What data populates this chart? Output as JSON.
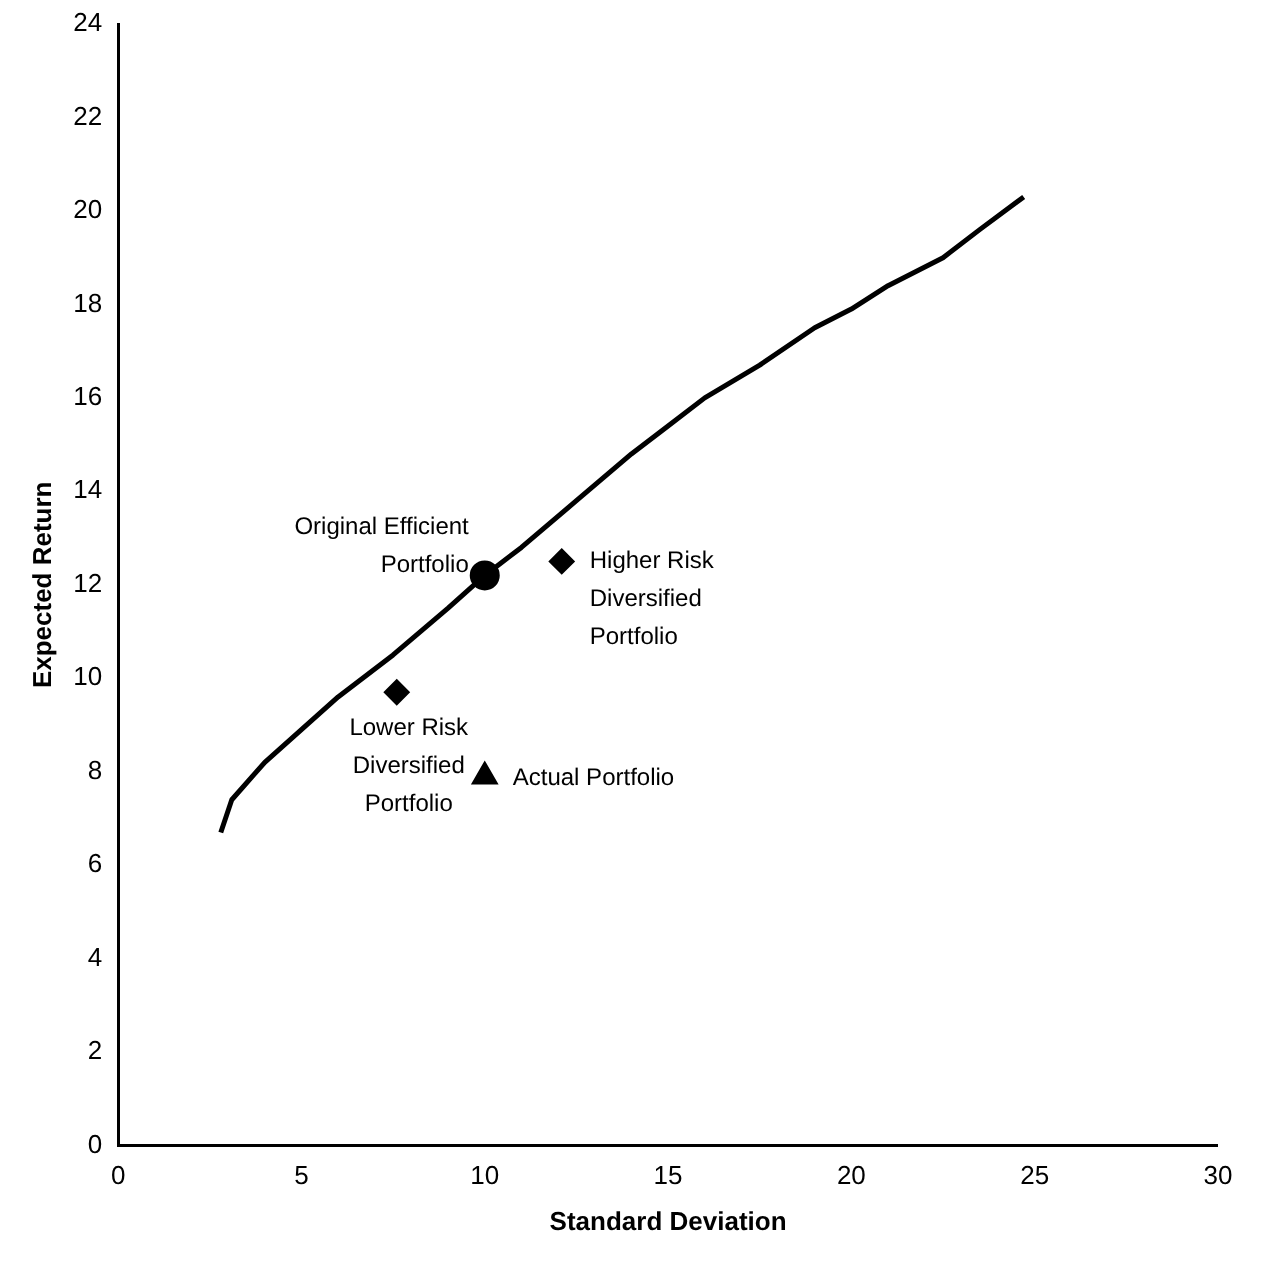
{
  "chart_data": {
    "type": "scatter",
    "xlabel": "Standard Deviation",
    "ylabel": "Expected Return",
    "xlim": [
      0,
      30
    ],
    "xticks": [
      0,
      5,
      10,
      15,
      20,
      25,
      30
    ],
    "ylim": [
      0,
      24
    ],
    "yticks": [
      0,
      2,
      4,
      6,
      8,
      10,
      12,
      14,
      16,
      18,
      20,
      22,
      24
    ],
    "grid": false,
    "legend": false,
    "series": [
      {
        "type": "line",
        "color": "#000000",
        "marker": "none",
        "x": [
          2.8,
          3.1,
          4,
          5,
          6,
          7.5,
          9,
          10,
          11,
          12.5,
          14,
          15,
          16,
          17.5,
          19,
          20,
          21,
          22.5,
          23.5,
          24.7
        ],
        "values": [
          6.7,
          7.4,
          8.2,
          8.9,
          9.6,
          10.5,
          11.5,
          12.2,
          12.8,
          13.8,
          14.8,
          15.4,
          16,
          16.7,
          17.5,
          17.9,
          18.4,
          19,
          19.6,
          20.3
        ]
      },
      {
        "color": "#000000",
        "marker": "circle",
        "x": [
          10
        ],
        "values": [
          12.2
        ]
      },
      {
        "color": "#000000",
        "marker": "diamond",
        "x": [
          12.1,
          7.6
        ],
        "values": [
          12.5,
          9.7
        ]
      },
      {
        "color": "#000000",
        "marker": "triangle",
        "x": [
          10
        ],
        "values": [
          7.9
        ]
      }
    ],
    "annotations": [
      {
        "text": "Original Efficient\nPortfolio",
        "x": 10,
        "y": 12.2
      },
      {
        "text": "Higher Risk\nDiversified\nPortfolio",
        "x": 12.1,
        "y": 12.5
      },
      {
        "text": "Lower Risk\nDiversified\nPortfolio",
        "x": 7.6,
        "y": 9.7
      },
      {
        "text": "Actual Portfolio",
        "x": 10,
        "y": 7.9
      }
    ]
  }
}
